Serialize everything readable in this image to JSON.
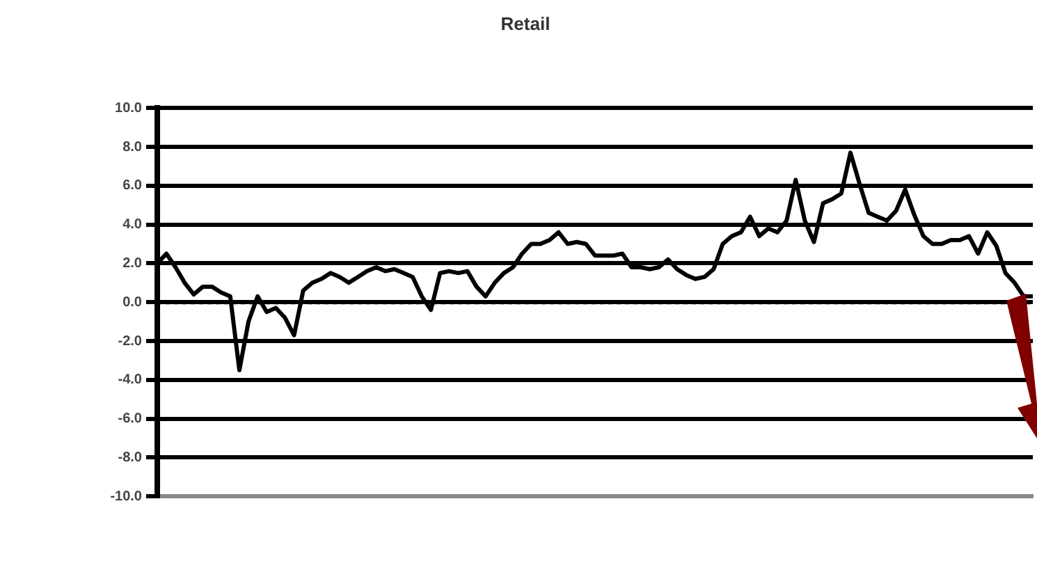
{
  "chart_data": {
    "type": "line",
    "title": "Retail",
    "categories": [
      null,
      null,
      null,
      null,
      null,
      null,
      null,
      null,
      null,
      null,
      null,
      null,
      null,
      null,
      null,
      null,
      null,
      null,
      null,
      null,
      null,
      null,
      null,
      null,
      null,
      null,
      null,
      null,
      null,
      null,
      null,
      null,
      null,
      null,
      null,
      null,
      null,
      null,
      null,
      null,
      null,
      null,
      null,
      null,
      null,
      null,
      null,
      null,
      null,
      null,
      null,
      null,
      null,
      null,
      null,
      null,
      null,
      null,
      null,
      null,
      null,
      null,
      null,
      null,
      null,
      null,
      null,
      null,
      null,
      null,
      null,
      null,
      null,
      null,
      null,
      null,
      null,
      null,
      null,
      null,
      null,
      null,
      null,
      null,
      null,
      null,
      null,
      null,
      null,
      null,
      null,
      null,
      null,
      null,
      null,
      null,
      null
    ],
    "series": [
      {
        "color": "#000000",
        "values": [
          2.0,
          2.5,
          1.8,
          1.0,
          0.4,
          0.8,
          0.8,
          0.5,
          0.3,
          -3.5,
          -1.0,
          0.3,
          -0.5,
          -0.3,
          -0.8,
          -1.7,
          0.6,
          1.0,
          1.2,
          1.5,
          1.3,
          1.0,
          1.3,
          1.6,
          1.8,
          1.6,
          1.7,
          1.5,
          1.3,
          0.3,
          -0.4,
          1.5,
          1.6,
          1.5,
          1.6,
          0.8,
          0.3,
          1.0,
          1.5,
          1.8,
          2.5,
          3.0,
          3.0,
          3.2,
          3.6,
          3.0,
          3.1,
          3.0,
          2.4,
          2.4,
          2.4,
          2.5,
          1.8,
          1.8,
          1.7,
          1.8,
          2.2,
          1.7,
          1.4,
          1.2,
          1.3,
          1.7,
          3.0,
          3.4,
          3.6,
          4.4,
          3.4,
          3.8,
          3.6,
          4.2,
          6.3,
          4.2,
          3.1,
          5.1,
          5.3,
          5.6,
          7.7,
          6.1,
          4.6,
          4.4,
          4.2,
          4.7,
          5.8,
          4.5,
          3.4,
          3.0,
          3.0,
          3.2,
          3.2,
          3.4,
          2.5,
          3.6,
          2.9,
          1.5,
          1.0,
          0.3,
          0.3
        ]
      }
    ],
    "ylim": [
      -10,
      10
    ],
    "yticks": [
      {
        "value": -10,
        "label": "-10.0"
      },
      {
        "value": -8,
        "label": "-8.0"
      },
      {
        "value": -6,
        "label": "-6.0"
      },
      {
        "value": -4,
        "label": "-4.0"
      },
      {
        "value": -2,
        "label": "-2.0"
      },
      {
        "value": 0,
        "label": "0.0"
      },
      {
        "value": 2,
        "label": "2.0"
      },
      {
        "value": 4,
        "label": "4.0"
      },
      {
        "value": 6,
        "label": "6.0"
      },
      {
        "value": 8,
        "label": "8.0"
      },
      {
        "value": 10,
        "label": "10.0"
      }
    ],
    "grid": "y",
    "legend": false,
    "marker": "none",
    "line_style": "solid",
    "ref_lines": [
      {
        "axis": "y",
        "value": 0,
        "line_style": "dotted",
        "color": "#000000"
      }
    ]
  }
}
